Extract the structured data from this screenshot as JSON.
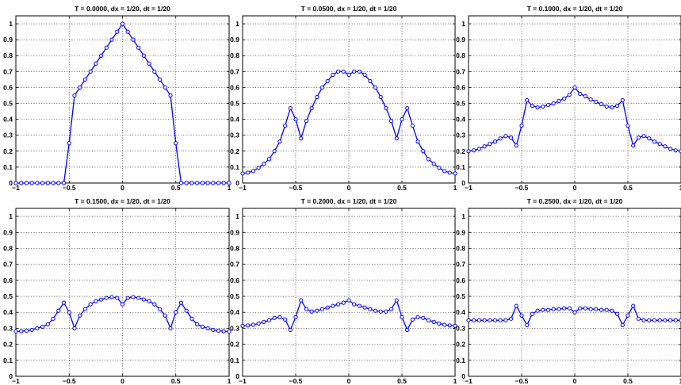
{
  "figure": {
    "background": "#ffffff",
    "line_color": "#0000ff",
    "marker": "open-circle"
  },
  "chart_data": [
    {
      "type": "line",
      "title": "T = 0.0000,  dx = 1/20,  dt = 1/20",
      "xlim": [
        -1,
        1
      ],
      "ylim": [
        0,
        1.05
      ],
      "xticks": [
        -1,
        -0.5,
        0,
        0.5,
        1
      ],
      "xtick_labels": [
        "−1",
        "−0.5",
        "0",
        "0.5",
        "1"
      ],
      "yticks": [
        0,
        0.1,
        0.2,
        0.3,
        0.4,
        0.5,
        0.6,
        0.7,
        0.8,
        0.9,
        1
      ],
      "ytick_labels": [
        "0",
        "0.1",
        "0.2",
        "0.3",
        "0.4",
        "0.5",
        "0.6",
        "0.7",
        "0.8",
        "0.9",
        "1"
      ],
      "grid": true,
      "x": [
        -1,
        -0.95,
        -0.9,
        -0.85,
        -0.8,
        -0.75,
        -0.7,
        -0.65,
        -0.6,
        -0.55,
        -0.5,
        -0.45,
        -0.4,
        -0.35,
        -0.3,
        -0.25,
        -0.2,
        -0.15,
        -0.1,
        -0.05,
        0,
        0.05,
        0.1,
        0.15,
        0.2,
        0.25,
        0.3,
        0.35,
        0.4,
        0.45,
        0.5,
        0.55,
        0.6,
        0.65,
        0.7,
        0.75,
        0.8,
        0.85,
        0.9,
        0.95,
        1
      ],
      "y": [
        0,
        0,
        0,
        0,
        0,
        0,
        0,
        0,
        0,
        0,
        0.25,
        0.55,
        0.6,
        0.65,
        0.7,
        0.75,
        0.8,
        0.85,
        0.9,
        0.95,
        1,
        0.95,
        0.9,
        0.85,
        0.8,
        0.75,
        0.7,
        0.65,
        0.6,
        0.55,
        0.25,
        0,
        0,
        0,
        0,
        0,
        0,
        0,
        0,
        0,
        0
      ]
    },
    {
      "type": "line",
      "title": "T = 0.0500,  dx = 1/20,  dt = 1/20",
      "xlim": [
        -1,
        1
      ],
      "ylim": [
        0,
        1.05
      ],
      "xticks": [
        -1,
        -0.5,
        0,
        0.5,
        1
      ],
      "xtick_labels": [
        "−1",
        "−0.5",
        "0",
        "0.5",
        "1"
      ],
      "yticks": [
        0,
        0.1,
        0.2,
        0.3,
        0.4,
        0.5,
        0.6,
        0.7,
        0.8,
        0.9,
        1
      ],
      "ytick_labels": [
        "0",
        "0.1",
        "0.2",
        "0.3",
        "0.4",
        "0.5",
        "0.6",
        "0.7",
        "0.8",
        "0.9",
        "1"
      ],
      "grid": true,
      "x": [
        -1,
        -0.95,
        -0.9,
        -0.85,
        -0.8,
        -0.75,
        -0.7,
        -0.65,
        -0.6,
        -0.55,
        -0.5,
        -0.45,
        -0.4,
        -0.35,
        -0.3,
        -0.25,
        -0.2,
        -0.15,
        -0.1,
        -0.05,
        0,
        0.05,
        0.1,
        0.15,
        0.2,
        0.25,
        0.3,
        0.35,
        0.4,
        0.45,
        0.5,
        0.55,
        0.6,
        0.65,
        0.7,
        0.75,
        0.8,
        0.85,
        0.9,
        0.95,
        1
      ],
      "y": [
        0.06,
        0.065,
        0.075,
        0.095,
        0.12,
        0.15,
        0.2,
        0.26,
        0.36,
        0.47,
        0.4,
        0.28,
        0.39,
        0.47,
        0.54,
        0.6,
        0.64,
        0.68,
        0.7,
        0.7,
        0.68,
        0.7,
        0.7,
        0.68,
        0.64,
        0.6,
        0.54,
        0.47,
        0.39,
        0.28,
        0.4,
        0.47,
        0.36,
        0.26,
        0.2,
        0.15,
        0.12,
        0.095,
        0.075,
        0.065,
        0.06
      ]
    },
    {
      "type": "line",
      "title": "T = 0.1000,  dx = 1/20,  dt = 1/20",
      "xlim": [
        -1,
        1
      ],
      "ylim": [
        0,
        1.05
      ],
      "xticks": [
        -1,
        -0.5,
        0,
        0.5,
        1
      ],
      "xtick_labels": [
        "−1",
        "−0.5",
        "0",
        "0.5",
        "1"
      ],
      "yticks": [
        0,
        0.1,
        0.2,
        0.3,
        0.4,
        0.5,
        0.6,
        0.7,
        0.8,
        0.9,
        1
      ],
      "ytick_labels": [
        "0",
        "0.1",
        "0.2",
        "0.3",
        "0.4",
        "0.5",
        "0.6",
        "0.7",
        "0.8",
        "0.9",
        "1"
      ],
      "grid": true,
      "x": [
        -1,
        -0.95,
        -0.9,
        -0.85,
        -0.8,
        -0.75,
        -0.7,
        -0.65,
        -0.6,
        -0.55,
        -0.5,
        -0.45,
        -0.4,
        -0.35,
        -0.3,
        -0.25,
        -0.2,
        -0.15,
        -0.1,
        -0.05,
        0,
        0.05,
        0.1,
        0.15,
        0.2,
        0.25,
        0.3,
        0.35,
        0.4,
        0.45,
        0.5,
        0.55,
        0.6,
        0.65,
        0.7,
        0.75,
        0.8,
        0.85,
        0.9,
        0.95,
        1
      ],
      "y": [
        0.2,
        0.205,
        0.215,
        0.23,
        0.245,
        0.26,
        0.28,
        0.295,
        0.285,
        0.235,
        0.36,
        0.52,
        0.485,
        0.475,
        0.48,
        0.49,
        0.5,
        0.515,
        0.53,
        0.555,
        0.6,
        0.56,
        0.545,
        0.525,
        0.51,
        0.495,
        0.48,
        0.475,
        0.485,
        0.52,
        0.36,
        0.235,
        0.285,
        0.295,
        0.28,
        0.26,
        0.245,
        0.23,
        0.215,
        0.205,
        0.2
      ]
    },
    {
      "type": "line",
      "title": "T = 0.1500,  dx = 1/20,  dt = 1/20",
      "xlim": [
        -1,
        1
      ],
      "ylim": [
        0,
        1.05
      ],
      "xticks": [
        -1,
        -0.5,
        0,
        0.5,
        1
      ],
      "xtick_labels": [
        "−1",
        "−0.5",
        "0",
        "0.5",
        "1"
      ],
      "yticks": [
        0,
        0.1,
        0.2,
        0.3,
        0.4,
        0.5,
        0.6,
        0.7,
        0.8,
        0.9,
        1
      ],
      "ytick_labels": [
        "0",
        "0.1",
        "0.2",
        "0.3",
        "0.4",
        "0.5",
        "0.6",
        "0.7",
        "0.8",
        "0.9",
        "1"
      ],
      "grid": true,
      "x": [
        -1,
        -0.95,
        -0.9,
        -0.85,
        -0.8,
        -0.75,
        -0.7,
        -0.65,
        -0.6,
        -0.55,
        -0.5,
        -0.45,
        -0.4,
        -0.35,
        -0.3,
        -0.25,
        -0.2,
        -0.15,
        -0.1,
        -0.05,
        0,
        0.05,
        0.1,
        0.15,
        0.2,
        0.25,
        0.3,
        0.35,
        0.4,
        0.45,
        0.5,
        0.55,
        0.6,
        0.65,
        0.7,
        0.75,
        0.8,
        0.85,
        0.9,
        0.95,
        1
      ],
      "y": [
        0.28,
        0.282,
        0.285,
        0.29,
        0.3,
        0.31,
        0.325,
        0.36,
        0.41,
        0.46,
        0.4,
        0.3,
        0.38,
        0.42,
        0.45,
        0.47,
        0.48,
        0.49,
        0.495,
        0.49,
        0.45,
        0.49,
        0.495,
        0.49,
        0.48,
        0.47,
        0.45,
        0.42,
        0.38,
        0.3,
        0.4,
        0.46,
        0.41,
        0.36,
        0.325,
        0.31,
        0.3,
        0.29,
        0.285,
        0.282,
        0.28
      ]
    },
    {
      "type": "line",
      "title": "T = 0.2000,  dx = 1/20,  dt = 1/20",
      "xlim": [
        -1,
        1
      ],
      "ylim": [
        0,
        1.05
      ],
      "xticks": [
        -1,
        -0.5,
        0,
        0.5,
        1
      ],
      "xtick_labels": [
        "−1",
        "−0.5",
        "0",
        "0.5",
        "1"
      ],
      "yticks": [
        0,
        0.1,
        0.2,
        0.3,
        0.4,
        0.5,
        0.6,
        0.7,
        0.8,
        0.9,
        1
      ],
      "ytick_labels": [
        "0",
        "0.1",
        "0.2",
        "0.3",
        "0.4",
        "0.5",
        "0.6",
        "0.7",
        "0.8",
        "0.9",
        "1"
      ],
      "grid": true,
      "x": [
        -1,
        -0.95,
        -0.9,
        -0.85,
        -0.8,
        -0.75,
        -0.7,
        -0.65,
        -0.6,
        -0.55,
        -0.5,
        -0.45,
        -0.4,
        -0.35,
        -0.3,
        -0.25,
        -0.2,
        -0.15,
        -0.1,
        -0.05,
        0,
        0.05,
        0.1,
        0.15,
        0.2,
        0.25,
        0.3,
        0.35,
        0.4,
        0.45,
        0.5,
        0.55,
        0.6,
        0.65,
        0.7,
        0.75,
        0.8,
        0.85,
        0.9,
        0.95,
        1
      ],
      "y": [
        0.315,
        0.318,
        0.322,
        0.33,
        0.34,
        0.35,
        0.365,
        0.37,
        0.355,
        0.29,
        0.37,
        0.475,
        0.42,
        0.405,
        0.41,
        0.42,
        0.43,
        0.44,
        0.45,
        0.46,
        0.475,
        0.45,
        0.44,
        0.43,
        0.42,
        0.41,
        0.405,
        0.405,
        0.42,
        0.475,
        0.37,
        0.29,
        0.355,
        0.37,
        0.365,
        0.35,
        0.34,
        0.33,
        0.322,
        0.318,
        0.315
      ]
    },
    {
      "type": "line",
      "title": "T = 0.2500,  dx = 1/20,  dt = 1/20",
      "xlim": [
        -1,
        1
      ],
      "ylim": [
        0,
        1.05
      ],
      "xticks": [
        -1,
        -0.5,
        0,
        0.5,
        1
      ],
      "xtick_labels": [
        "−1",
        "−0.5",
        "0",
        "0.5",
        "1"
      ],
      "yticks": [
        0,
        0.1,
        0.2,
        0.3,
        0.4,
        0.5,
        0.6,
        0.7,
        0.8,
        0.9,
        1
      ],
      "ytick_labels": [
        "0",
        "0.1",
        "0.2",
        "0.3",
        "0.4",
        "0.5",
        "0.6",
        "0.7",
        "0.8",
        "0.9",
        "1"
      ],
      "grid": true,
      "x": [
        -1,
        -0.95,
        -0.9,
        -0.85,
        -0.8,
        -0.75,
        -0.7,
        -0.65,
        -0.6,
        -0.55,
        -0.5,
        -0.45,
        -0.4,
        -0.35,
        -0.3,
        -0.25,
        -0.2,
        -0.15,
        -0.1,
        -0.05,
        0,
        0.05,
        0.1,
        0.15,
        0.2,
        0.25,
        0.3,
        0.35,
        0.4,
        0.45,
        0.5,
        0.55,
        0.6,
        0.65,
        0.7,
        0.75,
        0.8,
        0.85,
        0.9,
        0.95,
        1
      ],
      "y": [
        0.35,
        0.35,
        0.35,
        0.35,
        0.35,
        0.35,
        0.35,
        0.35,
        0.36,
        0.44,
        0.38,
        0.32,
        0.39,
        0.41,
        0.415,
        0.415,
        0.42,
        0.42,
        0.425,
        0.425,
        0.4,
        0.425,
        0.425,
        0.42,
        0.42,
        0.415,
        0.415,
        0.41,
        0.39,
        0.32,
        0.38,
        0.44,
        0.36,
        0.35,
        0.35,
        0.35,
        0.35,
        0.35,
        0.35,
        0.35,
        0.35
      ]
    }
  ]
}
